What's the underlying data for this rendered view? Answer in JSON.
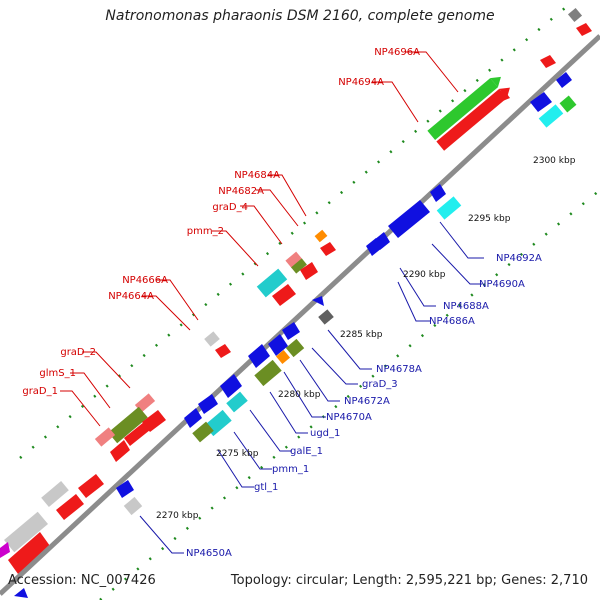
{
  "title": "Natronomonas pharaonis DSM 2160, complete genome",
  "footer": {
    "accession": "Accession: NC_007426",
    "info": "Topology: circular; Length: 2,595,221 bp; Genes: 2,710"
  },
  "colors": {
    "backbone": "#8c8c8c",
    "tick": "#1f8a1f",
    "label_plus": "#d40000",
    "label_minus": "#1a1aaa",
    "leader": "#d40000",
    "leader_minus": "#1a1aaa"
  },
  "kbp_labels": [
    "2270 kbp",
    "2275 kbp",
    "2280 kbp",
    "2285 kbp",
    "2290 kbp",
    "2295 kbp",
    "2300 kbp"
  ],
  "labels_plus": [
    "NP4696A",
    "NP4694A",
    "NP4684A",
    "NP4682A",
    "graD_4",
    "pmm_2",
    "NP4666A",
    "NP4664A",
    "graD_2",
    "glmS_1",
    "graD_1"
  ],
  "labels_minus": [
    "NP4692A",
    "NP4690A",
    "NP4688A",
    "NP4686A",
    "NP4678A",
    "graD_3",
    "NP4672A",
    "NP4670A",
    "ugd_1",
    "galE_1",
    "pmm_1",
    "gtl_1",
    "NP4650A"
  ]
}
